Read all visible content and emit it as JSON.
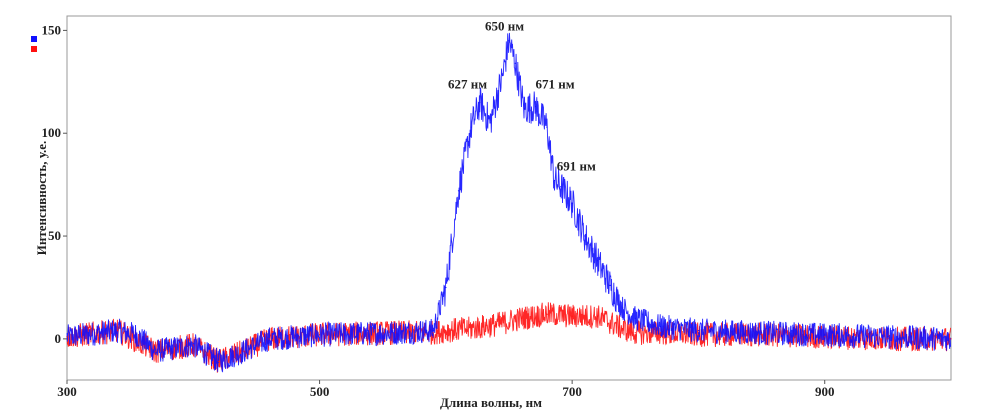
{
  "chart_data": {
    "type": "line",
    "xlabel": "Длина волны, нм",
    "ylabel": "Интенсивность, у.е.",
    "xlim": [
      300,
      1000
    ],
    "ylim": [
      -20,
      157
    ],
    "x_ticks": [
      300,
      500,
      700,
      900
    ],
    "y_ticks": [
      0,
      50,
      100,
      150
    ],
    "grid": false,
    "legend": "top-left (color markers only)",
    "series": [
      {
        "color": "#1010ff",
        "x": [
          300,
          340,
          355,
          370,
          400,
          420,
          440,
          460,
          500,
          560,
          590,
          600,
          610,
          620,
          627,
          635,
          645,
          650,
          655,
          662,
          671,
          680,
          686,
          691,
          700,
          710,
          720,
          730,
          740,
          750,
          770,
          800,
          850,
          900,
          950,
          1000
        ],
        "y": [
          1,
          4,
          2,
          -6,
          -3,
          -11,
          -6,
          0,
          2,
          3,
          4,
          25,
          72,
          103,
          115,
          105,
          128,
          145,
          134,
          112,
          113,
          103,
          77,
          74,
          66,
          50,
          38,
          26,
          15,
          10,
          6,
          4,
          3,
          2,
          1,
          0
        ]
      },
      {
        "color": "#ff1010",
        "x": [
          300,
          340,
          370,
          400,
          420,
          440,
          460,
          500,
          560,
          590,
          600,
          620,
          640,
          660,
          680,
          700,
          720,
          740,
          750,
          770,
          800,
          850,
          900,
          950,
          1000
        ],
        "y": [
          1,
          4,
          -6,
          -3,
          -11,
          -6,
          0,
          2,
          3,
          3,
          4,
          5,
          7,
          10,
          12,
          11,
          11,
          5,
          3,
          3,
          2,
          2,
          1,
          0,
          0
        ]
      }
    ],
    "annotations": [
      {
        "text": "627 нм",
        "x": 627,
        "y": 115
      },
      {
        "text": "650 нм",
        "x": 650,
        "y": 145
      },
      {
        "text": "671 нм",
        "x": 671,
        "y": 113
      },
      {
        "text": "691 нм",
        "x": 691,
        "y": 74
      }
    ]
  }
}
